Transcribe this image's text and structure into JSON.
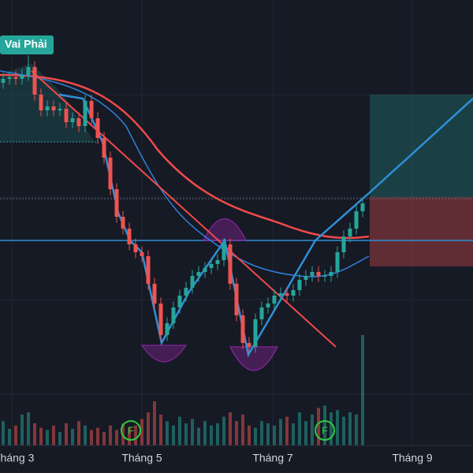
{
  "chart_data": {
    "type": "candlestick",
    "pattern_label": "Vai Phải",
    "x_labels": [
      "Tháng 3",
      "Tháng 5",
      "Tháng 7",
      "Tháng 9"
    ],
    "markers": [
      "F",
      "F"
    ],
    "up_color": "#26a69a",
    "down_color": "#ef5350",
    "ylim": [
      0,
      112
    ],
    "vlim": [
      0,
      100
    ],
    "open": [
      91,
      92,
      92.4,
      92,
      93,
      95,
      88,
      84,
      85,
      84,
      84.4,
      81,
      82,
      80,
      86.4,
      82,
      77,
      72,
      64,
      57,
      54,
      50,
      48,
      47,
      40,
      35,
      27,
      30,
      34,
      37,
      39,
      42,
      43,
      44,
      45,
      46,
      50,
      40,
      32,
      25,
      24,
      31,
      34,
      35,
      37,
      37.6,
      37,
      38.4,
      41,
      42,
      43,
      42,
      42,
      43,
      48,
      52,
      54,
      58.4
    ],
    "high": [
      93.5,
      93.9,
      93.9,
      94.5,
      98,
      96.5,
      89.5,
      86.5,
      86.5,
      85.9,
      85.9,
      83.5,
      83.5,
      87.9,
      87.9,
      83.5,
      78.5,
      73.5,
      65.5,
      58.5,
      55.5,
      51.5,
      49.5,
      48.5,
      41.5,
      36.5,
      31.5,
      35.5,
      38.5,
      40.5,
      43.5,
      44.5,
      45.5,
      46.5,
      47.5,
      51.5,
      51.5,
      41.5,
      33.5,
      26.5,
      32.5,
      35.5,
      36.5,
      38.5,
      39.1,
      39.1,
      39.9,
      42.5,
      43.5,
      44.5,
      44.5,
      43.5,
      44.5,
      49.5,
      53.5,
      55.5,
      59.9,
      61.9
    ],
    "low": [
      89.5,
      90.5,
      90.5,
      90.5,
      91.5,
      86.5,
      82.5,
      82.5,
      82.5,
      82.5,
      79.5,
      79.5,
      78.5,
      78.5,
      80.5,
      75.5,
      70.5,
      62.5,
      55.5,
      52.5,
      48.5,
      46.5,
      45.5,
      38.5,
      33.5,
      25.5,
      25.5,
      28.5,
      32.5,
      35.5,
      37.5,
      40.5,
      41.5,
      42.5,
      43.5,
      44.5,
      38.5,
      30.5,
      23.5,
      22.5,
      22.5,
      29.5,
      32.5,
      33.5,
      35.5,
      35.5,
      35.5,
      36.9,
      39.5,
      40.5,
      40.5,
      40.5,
      40.5,
      41.5,
      46.5,
      50.5,
      52.5,
      56.9
    ],
    "close": [
      92,
      92.4,
      92,
      93,
      95,
      88,
      84,
      85,
      84,
      84.4,
      81,
      82,
      80,
      86.4,
      82,
      77,
      72,
      64,
      57,
      54,
      50,
      48,
      47,
      40,
      35,
      27,
      30,
      34,
      37,
      39,
      42,
      43,
      44,
      45,
      46,
      50,
      40,
      32,
      25,
      24,
      31,
      34,
      35,
      37,
      37.6,
      37,
      38.4,
      41,
      42,
      43,
      42,
      42,
      43,
      48,
      52,
      54,
      58.4,
      60.4
    ],
    "volume": [
      22,
      15,
      18,
      28,
      30,
      20,
      16,
      14,
      18,
      12,
      20,
      15,
      22,
      18,
      14,
      16,
      12,
      18,
      14,
      20,
      16,
      18,
      24,
      30,
      40,
      28,
      22,
      18,
      26,
      20,
      24,
      16,
      22,
      18,
      20,
      26,
      30,
      22,
      28,
      18,
      16,
      22,
      20,
      18,
      24,
      26,
      20,
      30,
      22,
      28,
      34,
      36,
      30,
      32,
      26,
      30,
      28,
      100
    ]
  }
}
